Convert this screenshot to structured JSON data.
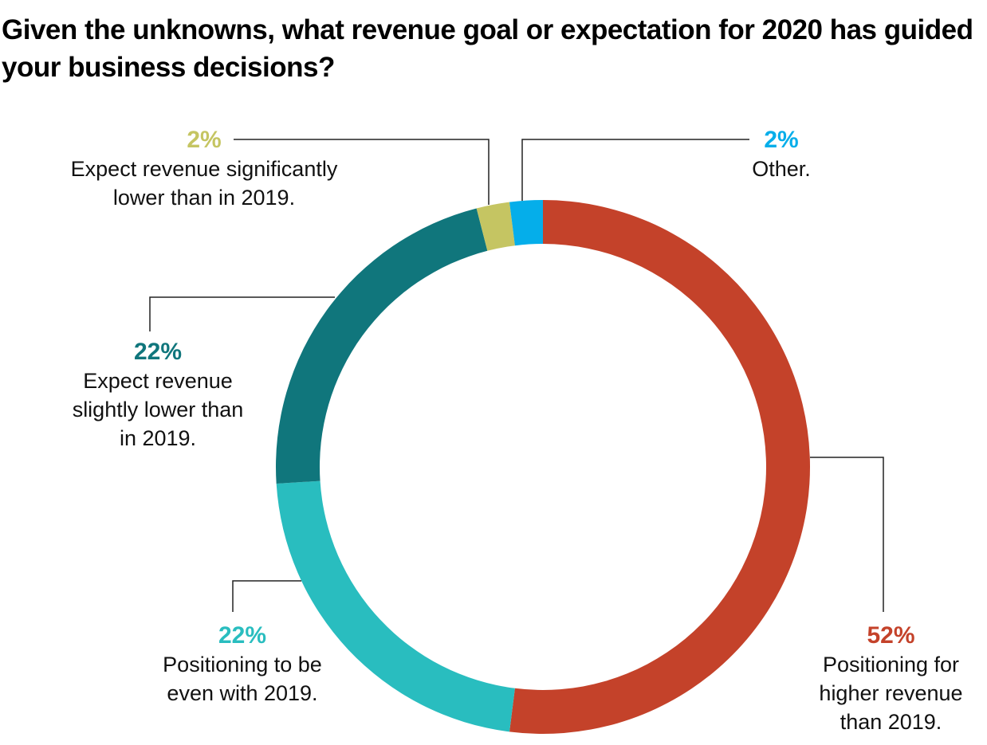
{
  "chart_data": {
    "type": "pie",
    "variant": "donut",
    "title": "Given the unknowns, what revenue goal or expectation for 2020 has guided your business decisions?",
    "start": "top",
    "direction": "clockwise",
    "slices": [
      {
        "key": "higher",
        "label": "Positioning for higher revenue than 2019.",
        "label_lines": "Positioning for\nhigher revenue\nthan 2019.",
        "value": 52,
        "pct_text": "52%",
        "color": "#c4422a"
      },
      {
        "key": "even",
        "label": "Positioning to be even with 2019.",
        "label_lines": "Positioning to be\neven with 2019.",
        "value": 22,
        "pct_text": "22%",
        "color": "#29bdbf"
      },
      {
        "key": "slightly-lower",
        "label": "Expect revenue slightly lower than in 2019.",
        "label_lines": "Expect revenue\nslightly lower than\nin 2019.",
        "value": 22,
        "pct_text": "22%",
        "color": "#10767c"
      },
      {
        "key": "significantly-lower",
        "label": "Expect revenue significantly lower than in 2019.",
        "label_lines": "Expect revenue significantly\nlower than in 2019.",
        "value": 2,
        "pct_text": "2%",
        "color": "#c5c562"
      },
      {
        "key": "other",
        "label": "Other.",
        "label_lines": "Other.",
        "value": 2,
        "pct_text": "2%",
        "color": "#05aeea"
      }
    ]
  }
}
